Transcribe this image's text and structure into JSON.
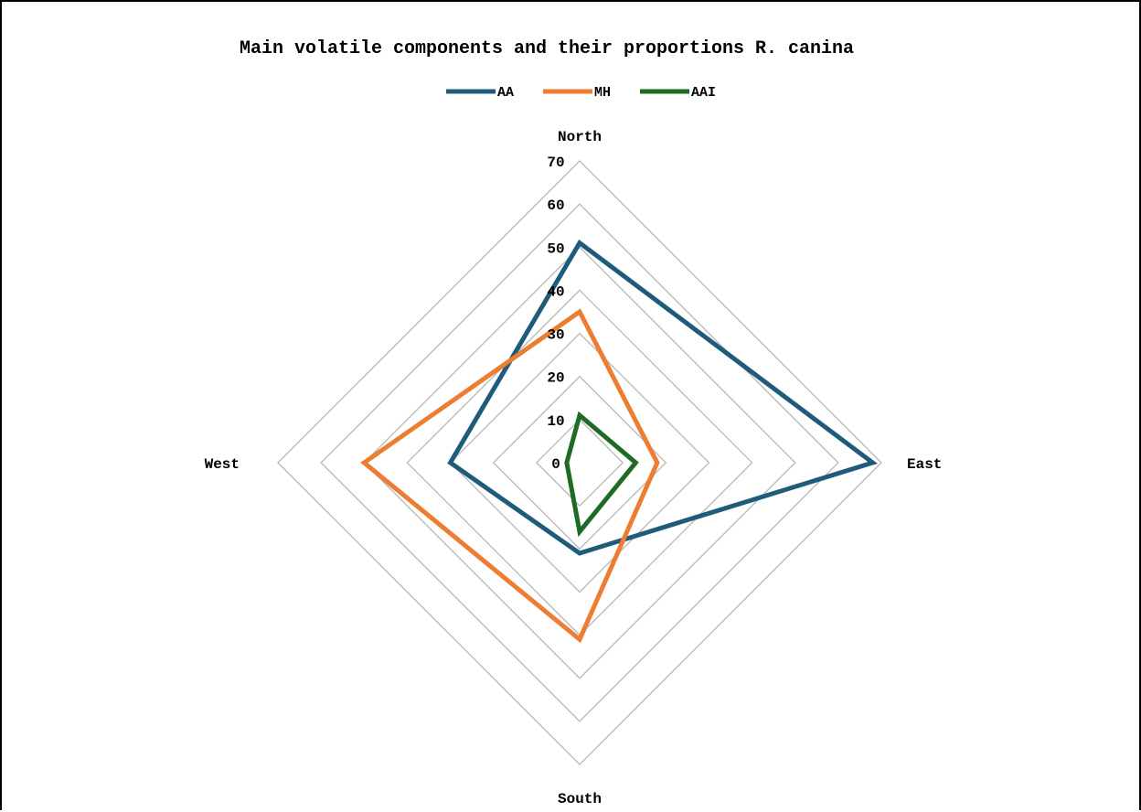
{
  "chart_data": {
    "type": "radar",
    "title": "Main volatile components and their proportions R. canina",
    "categories": [
      "North",
      "East",
      "South",
      "West"
    ],
    "r_range": [
      0,
      70
    ],
    "r_ticks": [
      0,
      10,
      20,
      30,
      40,
      50,
      60,
      70
    ],
    "grid": true,
    "legend_position": "top",
    "series": [
      {
        "name": "AA",
        "color": "#1f5b7a",
        "values": [
          51,
          68,
          21,
          30
        ]
      },
      {
        "name": "MH",
        "color": "#ed7d31",
        "values": [
          35,
          18,
          41,
          50
        ]
      },
      {
        "name": "AAI",
        "color": "#1e6b24",
        "values": [
          11,
          13,
          16,
          3
        ]
      }
    ],
    "grid_color": "#bfbfbf"
  }
}
